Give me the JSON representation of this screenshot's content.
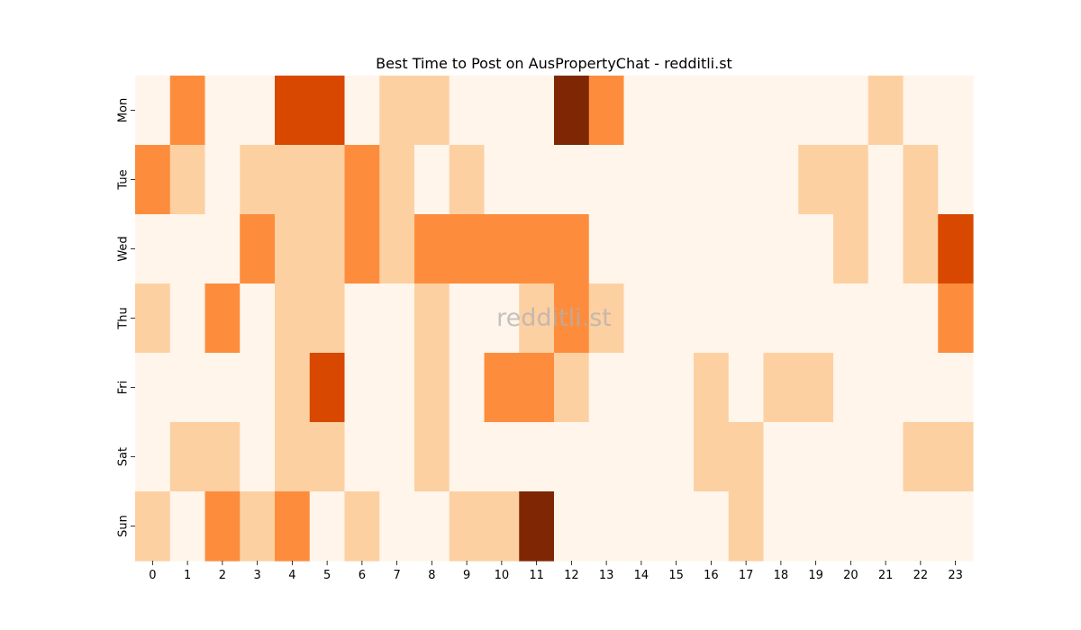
{
  "chart_data": {
    "type": "heatmap",
    "title": "Best Time to Post on AusPropertyChat - redditli.st",
    "watermark": "redditli.st",
    "x_categories": [
      "0",
      "1",
      "2",
      "3",
      "4",
      "5",
      "6",
      "7",
      "8",
      "9",
      "10",
      "11",
      "12",
      "13",
      "14",
      "15",
      "16",
      "17",
      "18",
      "19",
      "20",
      "21",
      "22",
      "23"
    ],
    "y_categories": [
      "Mon",
      "Tue",
      "Wed",
      "Thu",
      "Fri",
      "Sat",
      "Sun"
    ],
    "values": [
      [
        0,
        2,
        0,
        0,
        3,
        3,
        0,
        1,
        1,
        0,
        0,
        0,
        4,
        2,
        0,
        0,
        0,
        0,
        0,
        0,
        0,
        1,
        0,
        0
      ],
      [
        2,
        1,
        0,
        1,
        1,
        1,
        2,
        1,
        0,
        1,
        0,
        0,
        0,
        0,
        0,
        0,
        0,
        0,
        0,
        1,
        1,
        0,
        1,
        0
      ],
      [
        0,
        0,
        0,
        2,
        1,
        1,
        2,
        1,
        2,
        2,
        2,
        2,
        2,
        0,
        0,
        0,
        0,
        0,
        0,
        0,
        1,
        0,
        1,
        3
      ],
      [
        1,
        0,
        2,
        0,
        1,
        1,
        0,
        0,
        1,
        0,
        0,
        1,
        2,
        1,
        0,
        0,
        0,
        0,
        0,
        0,
        0,
        0,
        0,
        2
      ],
      [
        0,
        0,
        0,
        0,
        1,
        3,
        0,
        0,
        1,
        0,
        2,
        2,
        1,
        0,
        0,
        0,
        1,
        0,
        1,
        1,
        0,
        0,
        0,
        0
      ],
      [
        0,
        1,
        1,
        0,
        1,
        1,
        0,
        0,
        1,
        0,
        0,
        0,
        0,
        0,
        0,
        0,
        1,
        1,
        0,
        0,
        0,
        0,
        1,
        1
      ],
      [
        1,
        0,
        2,
        1,
        2,
        0,
        1,
        0,
        0,
        1,
        1,
        4,
        0,
        0,
        0,
        0,
        0,
        1,
        0,
        0,
        0,
        0,
        0,
        0
      ]
    ],
    "colorscale": [
      "#fff5eb",
      "#fdd0a2",
      "#fd8d3c",
      "#d94801",
      "#7f2704"
    ],
    "colorbar": false,
    "grid": false
  }
}
